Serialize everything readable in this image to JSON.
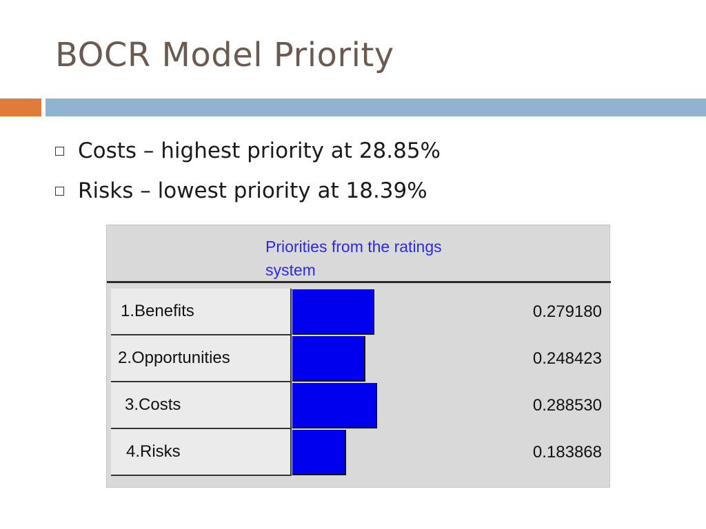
{
  "slide": {
    "title": "BOCR Model Priority",
    "bullets": [
      "Costs – highest priority at 28.85%",
      "Risks – lowest priority at 18.39%"
    ]
  },
  "colors": {
    "title": "#6b5a4f",
    "accent_band": "#e07b39",
    "main_band": "#8fb3d1",
    "bar": "#0000ee",
    "panel_title": "#2a2aee"
  },
  "chart_data": {
    "type": "bar",
    "orientation": "horizontal",
    "title": "Priorities from the ratings system",
    "categories": [
      "1.Benefits",
      "2.Opportunities",
      "3.Costs",
      "4.Risks"
    ],
    "values": [
      0.27918,
      0.248423,
      0.28853,
      0.183868
    ],
    "value_labels": [
      "0.279180",
      "0.248423",
      "0.288530",
      "0.183868"
    ],
    "xlim": [
      0,
      0.6
    ],
    "grid": false
  }
}
